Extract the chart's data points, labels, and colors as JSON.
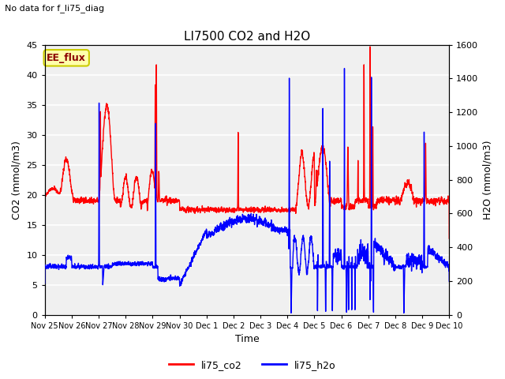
{
  "title": "LI7500 CO2 and H2O",
  "subtitle": "No data for f_li75_diag",
  "xlabel": "Time",
  "ylabel_left": "CO2 (mmol/m3)",
  "ylabel_right": "H2O (mmol/m3)",
  "ylim_left": [
    0,
    45
  ],
  "ylim_right": [
    0,
    1600
  ],
  "legend_entries": [
    "li75_co2",
    "li75_h2o"
  ],
  "legend_colors": [
    "red",
    "blue"
  ],
  "xtick_labels": [
    "Nov 25",
    "Nov 26",
    "Nov 27",
    "Nov 28",
    "Nov 29",
    "Nov 30",
    "Dec 1",
    "Dec 2",
    "Dec 3",
    "Dec 4",
    "Dec 5",
    "Dec 6",
    "Dec 7",
    "Dec 8",
    "Dec 9",
    "Dec 10"
  ],
  "axes_facecolor": "#f0f0f0",
  "grid_color": "#ffffff",
  "ee_flux_label": "EE_flux",
  "ee_flux_bgcolor": "#ffffaa",
  "ee_flux_bordercolor": "#cccc00",
  "fig_facecolor": "#ffffff",
  "line_width": 1.0,
  "yticks_left": [
    0,
    5,
    10,
    15,
    20,
    25,
    30,
    35,
    40,
    45
  ],
  "yticks_right": [
    0,
    200,
    400,
    600,
    800,
    1000,
    1200,
    1400,
    1600
  ]
}
